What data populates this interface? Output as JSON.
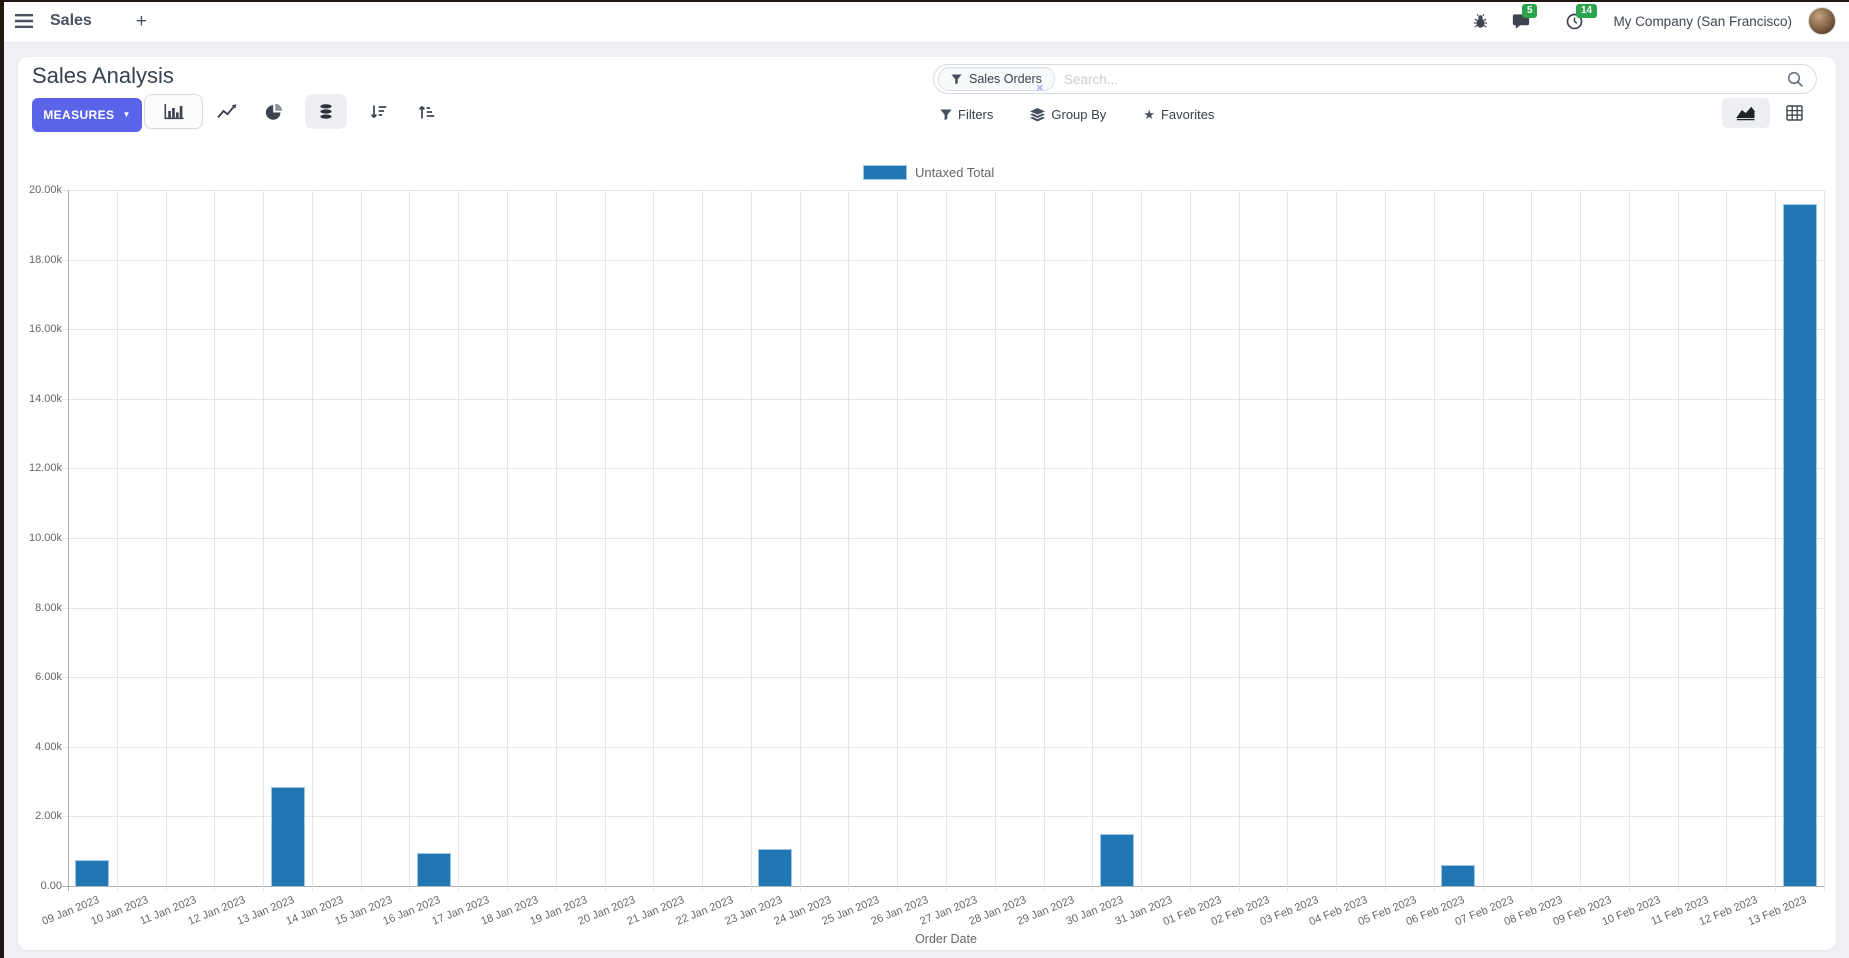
{
  "navbar": {
    "app_label": "Sales",
    "new_label": "+",
    "message_count": "5",
    "activity_count": "14",
    "company": "My Company (San Francisco)"
  },
  "panel": {
    "title": "Sales Analysis",
    "measures_label": "MEASURES",
    "filters_label": "Filters",
    "group_by_label": "Group By",
    "favorites_label": "Favorites",
    "facet_label": "Sales Orders",
    "search_placeholder": "Search..."
  },
  "icons": {
    "caret_down": "▼",
    "star": "★",
    "close": "×"
  },
  "colors": {
    "primary": "#5b63e9",
    "bar_fill": "#2077b4",
    "bar_border": "#a0c6e2",
    "badge_green": "#2ca44e"
  },
  "chart_data": {
    "type": "bar",
    "title": "",
    "legend": [
      "Untaxed Total"
    ],
    "xlabel": "Order Date",
    "ylabel": "",
    "grid": true,
    "legend_position": "top-center",
    "ylim": [
      0,
      20000
    ],
    "ytick_step": 2000,
    "ytick_labels": [
      "0.00",
      "2.00k",
      "4.00k",
      "6.00k",
      "8.00k",
      "10.00k",
      "12.00k",
      "14.00k",
      "16.00k",
      "18.00k",
      "20.00k"
    ],
    "categories": [
      "09 Jan 2023",
      "10 Jan 2023",
      "11 Jan 2023",
      "12 Jan 2023",
      "13 Jan 2023",
      "14 Jan 2023",
      "15 Jan 2023",
      "16 Jan 2023",
      "17 Jan 2023",
      "18 Jan 2023",
      "19 Jan 2023",
      "20 Jan 2023",
      "21 Jan 2023",
      "22 Jan 2023",
      "23 Jan 2023",
      "24 Jan 2023",
      "25 Jan 2023",
      "26 Jan 2023",
      "27 Jan 2023",
      "28 Jan 2023",
      "29 Jan 2023",
      "30 Jan 2023",
      "31 Jan 2023",
      "01 Feb 2023",
      "02 Feb 2023",
      "03 Feb 2023",
      "04 Feb 2023",
      "05 Feb 2023",
      "06 Feb 2023",
      "07 Feb 2023",
      "08 Feb 2023",
      "09 Feb 2023",
      "10 Feb 2023",
      "11 Feb 2023",
      "12 Feb 2023",
      "13 Feb 2023"
    ],
    "values": [
      760,
      0,
      0,
      0,
      2850,
      0,
      0,
      950,
      0,
      0,
      0,
      0,
      0,
      0,
      1050,
      0,
      0,
      0,
      0,
      0,
      0,
      1500,
      0,
      0,
      0,
      0,
      0,
      0,
      610,
      0,
      0,
      0,
      0,
      0,
      0,
      19600
    ]
  }
}
